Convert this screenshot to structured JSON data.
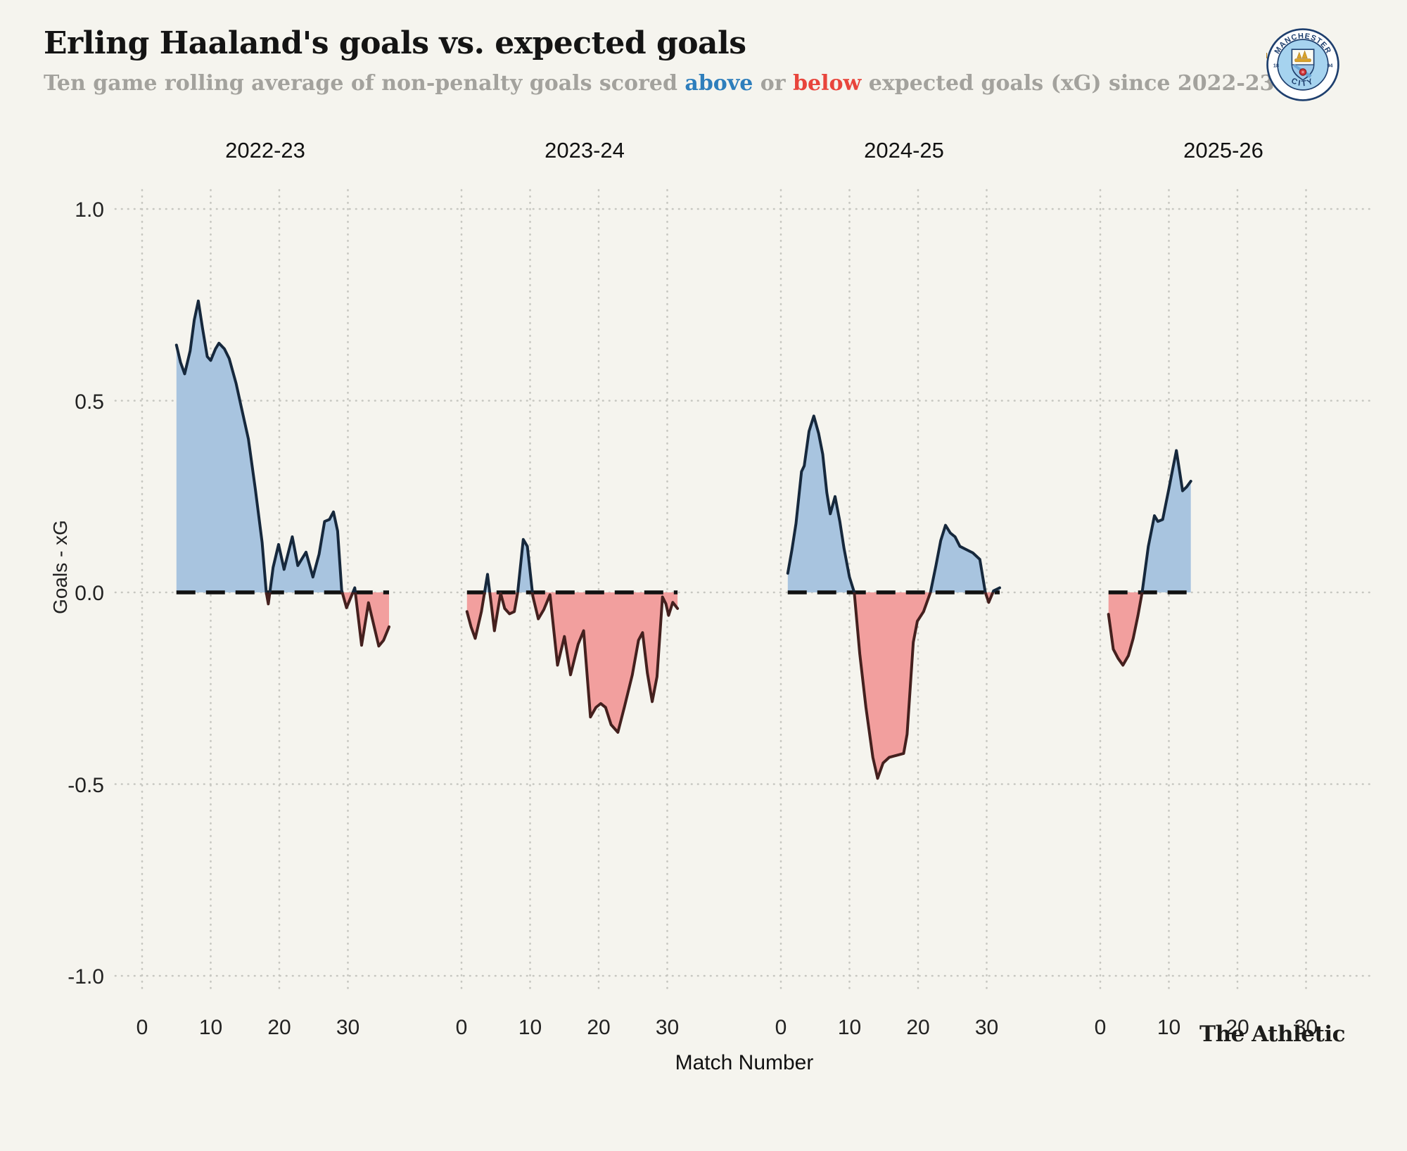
{
  "header": {
    "title": "Erling Haaland's goals vs. expected goals",
    "subtitle": {
      "pre": "Ten game rolling average of non-penalty goals scored ",
      "above_word": "above",
      "or_word": " or ",
      "below_word": "below",
      "post": " expected goals (xG) since 2022-23"
    }
  },
  "logo": {
    "club": "Manchester City crest",
    "top_text": "MANCHESTER",
    "bottom_text": "CITY",
    "year_left": "18",
    "year_right": "94"
  },
  "axes": {
    "y_title": "Goals - xG",
    "x_title": "Match Number",
    "y_ticks": [
      "1.0",
      "0.5",
      "0.0",
      "-0.5",
      "-1.0"
    ],
    "y_tick_values": [
      1.0,
      0.5,
      0.0,
      -0.5,
      -1.0
    ],
    "x_ticks": [
      0,
      10,
      20,
      30
    ],
    "y_range": [
      -1.1,
      1.15
    ],
    "grid": "dotted",
    "zero_line": "black dashed"
  },
  "footer": {
    "brand": "The Athletic"
  },
  "colors": {
    "background": "#f5f4ee",
    "above_fill": "#a8c4df",
    "below_fill": "#f29f9e",
    "line_above": "#16283c",
    "line_below": "#44201e",
    "grid_dot": "#c6c6c0",
    "zero_line": "#111111",
    "above_text": "#2e7ebc",
    "below_text": "#e8453c",
    "subtitle_gray": "#a3a29d"
  },
  "chart_data": {
    "type": "area",
    "title": "Erling Haaland's goals vs. expected goals",
    "subtitle": "Ten game rolling average of non-penalty goals scored above or below expected goals (xG) since 2022-23",
    "xlabel": "Match Number",
    "ylabel": "Goals - xG",
    "ylim": [
      -1.1,
      1.15
    ],
    "xlim_per_panel": [
      -4.1,
      40
    ],
    "panels": [
      {
        "season": "2022-23",
        "points": [
          [
            5,
            0.645
          ],
          [
            5.6,
            0.6
          ],
          [
            6.2,
            0.57
          ],
          [
            7,
            0.63
          ],
          [
            7.6,
            0.71
          ],
          [
            8.2,
            0.76
          ],
          [
            8.8,
            0.69
          ],
          [
            9.5,
            0.615
          ],
          [
            10,
            0.605
          ],
          [
            10.7,
            0.635
          ],
          [
            11.2,
            0.65
          ],
          [
            12,
            0.635
          ],
          [
            12.7,
            0.61
          ],
          [
            13.7,
            0.545
          ],
          [
            14.5,
            0.48
          ],
          [
            15.5,
            0.4
          ],
          [
            16.5,
            0.27
          ],
          [
            17.5,
            0.13
          ],
          [
            18.1,
            0
          ],
          [
            18.4,
            -0.03
          ],
          [
            19.1,
            0.065
          ],
          [
            19.9,
            0.125
          ],
          [
            20.7,
            0.06
          ],
          [
            21.9,
            0.145
          ],
          [
            22.7,
            0.07
          ],
          [
            23.9,
            0.105
          ],
          [
            24.9,
            0.04
          ],
          [
            25.8,
            0.1
          ],
          [
            26.6,
            0.185
          ],
          [
            27.3,
            0.19
          ],
          [
            27.9,
            0.21
          ],
          [
            28.5,
            0.16
          ],
          [
            29.1,
            0.005
          ],
          [
            29.8,
            -0.04
          ],
          [
            31,
            0.012
          ],
          [
            32,
            -0.138
          ],
          [
            33,
            -0.027
          ],
          [
            34.5,
            -0.14
          ],
          [
            35.2,
            -0.125
          ],
          [
            36,
            -0.09
          ]
        ]
      },
      {
        "season": "2023-24",
        "points": [
          [
            0.8,
            -0.05
          ],
          [
            1.4,
            -0.09
          ],
          [
            2,
            -0.12
          ],
          [
            2.9,
            -0.05
          ],
          [
            3.8,
            0.047
          ],
          [
            4.4,
            -0.04
          ],
          [
            4.8,
            -0.1
          ],
          [
            5.7,
            -0.002
          ],
          [
            6.3,
            -0.042
          ],
          [
            7,
            -0.056
          ],
          [
            7.7,
            -0.05
          ],
          [
            8.2,
            0
          ],
          [
            9,
            0.138
          ],
          [
            9.6,
            0.12
          ],
          [
            10.4,
            -0.01
          ],
          [
            11.2,
            -0.069
          ],
          [
            12,
            -0.045
          ],
          [
            12.9,
            -0.006
          ],
          [
            14,
            -0.19
          ],
          [
            15,
            -0.115
          ],
          [
            15.9,
            -0.215
          ],
          [
            17,
            -0.135
          ],
          [
            17.8,
            -0.1
          ],
          [
            18.8,
            -0.325
          ],
          [
            19.6,
            -0.3
          ],
          [
            20.3,
            -0.29
          ],
          [
            21,
            -0.3
          ],
          [
            21.8,
            -0.345
          ],
          [
            22.8,
            -0.365
          ],
          [
            23.8,
            -0.295
          ],
          [
            24.9,
            -0.215
          ],
          [
            25.8,
            -0.125
          ],
          [
            26.4,
            -0.105
          ],
          [
            27.1,
            -0.21
          ],
          [
            27.8,
            -0.285
          ],
          [
            28.5,
            -0.22
          ],
          [
            29.3,
            -0.012
          ],
          [
            29.8,
            -0.03
          ],
          [
            30.2,
            -0.06
          ],
          [
            30.8,
            -0.026
          ],
          [
            31.5,
            -0.042
          ]
        ]
      },
      {
        "season": "2024-25",
        "points": [
          [
            1,
            0.05
          ],
          [
            1.6,
            0.11
          ],
          [
            2.2,
            0.18
          ],
          [
            3,
            0.315
          ],
          [
            3.4,
            0.33
          ],
          [
            4.1,
            0.42
          ],
          [
            4.8,
            0.46
          ],
          [
            5.5,
            0.415
          ],
          [
            6.1,
            0.36
          ],
          [
            6.7,
            0.26
          ],
          [
            7.2,
            0.205
          ],
          [
            7.9,
            0.25
          ],
          [
            8.6,
            0.185
          ],
          [
            9.2,
            0.115
          ],
          [
            10,
            0.04
          ],
          [
            10.7,
            0
          ],
          [
            11.5,
            -0.16
          ],
          [
            12.4,
            -0.3
          ],
          [
            13.4,
            -0.43
          ],
          [
            14.1,
            -0.485
          ],
          [
            14.9,
            -0.445
          ],
          [
            15.8,
            -0.43
          ],
          [
            16.9,
            -0.425
          ],
          [
            17.9,
            -0.42
          ],
          [
            18.4,
            -0.37
          ],
          [
            19.3,
            -0.13
          ],
          [
            19.9,
            -0.075
          ],
          [
            20.8,
            -0.05
          ],
          [
            21.8,
            0
          ],
          [
            22.6,
            0.07
          ],
          [
            23.3,
            0.135
          ],
          [
            24,
            0.175
          ],
          [
            24.7,
            0.155
          ],
          [
            25.4,
            0.145
          ],
          [
            26.1,
            0.12
          ],
          [
            27,
            0.112
          ],
          [
            28,
            0.103
          ],
          [
            29,
            0.086
          ],
          [
            29.8,
            0
          ],
          [
            30.3,
            -0.026
          ],
          [
            31,
            0.004
          ],
          [
            31.9,
            0.012
          ]
        ]
      },
      {
        "season": "2025-26",
        "points": [
          [
            1.2,
            -0.057
          ],
          [
            1.9,
            -0.148
          ],
          [
            2.6,
            -0.172
          ],
          [
            3.3,
            -0.19
          ],
          [
            4.1,
            -0.165
          ],
          [
            4.8,
            -0.12
          ],
          [
            5.5,
            -0.06
          ],
          [
            6.1,
            0
          ],
          [
            7,
            0.12
          ],
          [
            7.9,
            0.2
          ],
          [
            8.4,
            0.185
          ],
          [
            9.1,
            0.19
          ],
          [
            10,
            0.27
          ],
          [
            10.6,
            0.325
          ],
          [
            11.1,
            0.37
          ],
          [
            12,
            0.265
          ],
          [
            12.6,
            0.275
          ],
          [
            13.2,
            0.29
          ]
        ]
      }
    ]
  }
}
